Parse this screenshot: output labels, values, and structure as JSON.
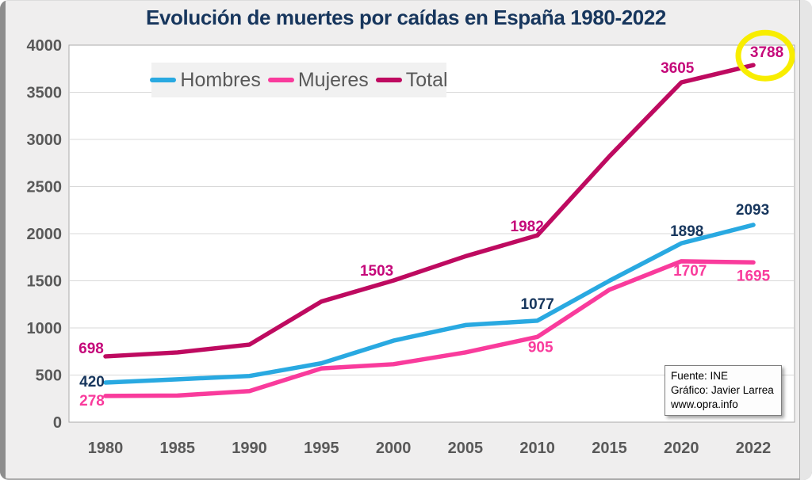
{
  "chart_data": {
    "type": "line",
    "title": "Evolución de muertes por caídas en España 1980-2022",
    "categories": [
      "1980",
      "1985",
      "1990",
      "1995",
      "2000",
      "2005",
      "2010",
      "2015",
      "2020",
      "2022"
    ],
    "yticks": [
      0,
      500,
      1000,
      1500,
      2000,
      2500,
      3000,
      3500,
      4000
    ],
    "ylim": [
      0,
      4000
    ],
    "grid": true,
    "legend_position": "top-left-inside",
    "series": [
      {
        "name": "Hombres",
        "color": "#29A9E1",
        "label_color": "#17365D",
        "values": [
          420,
          455,
          490,
          625,
          865,
          1030,
          1077,
          1500,
          1898,
          2093
        ],
        "labeled_points": [
          {
            "i": 0,
            "dx": -17,
            "dy": -2
          },
          {
            "i": 6,
            "dx": 0,
            "dy": -22
          },
          {
            "i": 8,
            "dx": 7,
            "dy": -16
          },
          {
            "i": 9,
            "dx": -1,
            "dy": -20
          }
        ]
      },
      {
        "name": "Mujeres",
        "color": "#F93B9C",
        "label_color": "#F93B9C",
        "values": [
          278,
          283,
          330,
          570,
          615,
          740,
          905,
          1405,
          1707,
          1695
        ],
        "labeled_points": [
          {
            "i": 0,
            "dx": -17,
            "dy": 5
          },
          {
            "i": 6,
            "dx": 4,
            "dy": 12
          },
          {
            "i": 8,
            "dx": 11,
            "dy": 11
          },
          {
            "i": 9,
            "dx": 0,
            "dy": 16
          }
        ]
      },
      {
        "name": "Total",
        "color": "#BE0A60",
        "label_color": "#C5087A",
        "values": [
          698,
          740,
          823,
          1280,
          1503,
          1760,
          1982,
          2820,
          3605,
          3788
        ],
        "labeled_points": [
          {
            "i": 0,
            "dx": -18,
            "dy": -11
          },
          {
            "i": 4,
            "dx": -21,
            "dy": -13
          },
          {
            "i": 6,
            "dx": -13,
            "dy": -12
          },
          {
            "i": 8,
            "dx": -5,
            "dy": -19
          },
          {
            "i": 9,
            "dx": 17,
            "dy": -17
          }
        ]
      }
    ],
    "highlight": {
      "series": "Total",
      "category": "2022",
      "shape": "ellipse",
      "color": "#F8ED00"
    }
  },
  "source_box": {
    "lines": [
      "Fuente: INE",
      "Gráfico: Javier Larrea",
      "www.opra.info"
    ]
  },
  "colors": {
    "title": "#17365D",
    "axis_text": "#595959",
    "grid": "#D9D9D9",
    "plot_border": "#ABABAB",
    "plot_bg": "#FFFFFF",
    "page_bg": "#EFEEEE",
    "legend_bg": "#F1F1F1"
  }
}
